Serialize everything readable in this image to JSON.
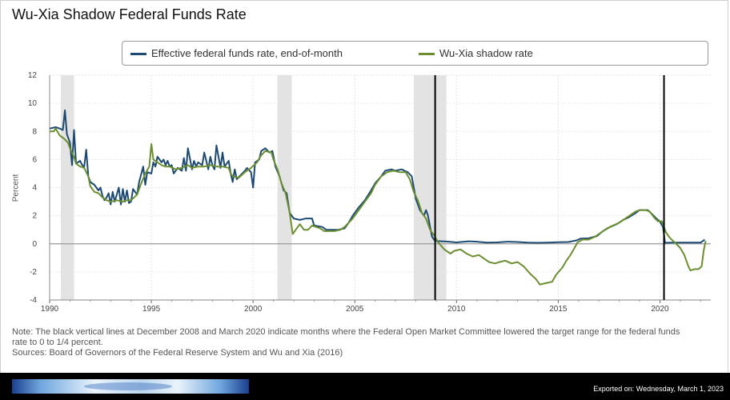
{
  "footer": {
    "export_label": "Exported on: Wednesday, March 1, 2023",
    "logo_icon": "fed-banner-logo"
  },
  "notes": {
    "note": "Note: The black vertical lines at December 2008 and March 2020 indicate months where the Federal Open Market Committee lowered the target range for the federal funds",
    "note_cont": "rate to 0 to 1/4 percent.",
    "sources": "Sources: Board of Governors of the Federal Reserve System and Wu and Xia (2016)"
  },
  "chart_data": {
    "type": "line",
    "title": "Wu-Xia Shadow Federal Funds Rate",
    "ylabel": "Percent",
    "xlim": [
      1990,
      2022.5
    ],
    "ylim": [
      -4,
      12
    ],
    "yticks": [
      -4,
      -2,
      0,
      2,
      4,
      6,
      8,
      10,
      12
    ],
    "xticks": [
      1990,
      1995,
      2000,
      2005,
      2010,
      2015,
      2020
    ],
    "grid": true,
    "legend": "top",
    "recessions": [
      [
        1990.55,
        1991.2
      ],
      [
        2001.2,
        2001.9
      ],
      [
        2007.9,
        2009.5
      ]
    ],
    "vlines": [
      2008.95,
      2020.2
    ],
    "series": [
      {
        "name": "Effective federal funds rate, end-of-month",
        "color": "#1d4a72",
        "points": [
          [
            1990.0,
            8.2
          ],
          [
            1990.3,
            8.3
          ],
          [
            1990.5,
            8.2
          ],
          [
            1990.65,
            8.1
          ],
          [
            1990.75,
            9.5
          ],
          [
            1990.85,
            7.8
          ],
          [
            1991.0,
            7.2
          ],
          [
            1991.1,
            5.6
          ],
          [
            1991.2,
            8.1
          ],
          [
            1991.3,
            5.7
          ],
          [
            1991.5,
            5.9
          ],
          [
            1991.6,
            5.6
          ],
          [
            1991.7,
            5.5
          ],
          [
            1991.8,
            6.7
          ],
          [
            1991.9,
            4.8
          ],
          [
            1992.0,
            4.4
          ],
          [
            1992.2,
            4.2
          ],
          [
            1992.4,
            3.8
          ],
          [
            1992.5,
            4.0
          ],
          [
            1992.6,
            3.4
          ],
          [
            1992.7,
            3.1
          ],
          [
            1992.8,
            3.3
          ],
          [
            1992.9,
            3.6
          ],
          [
            1993.0,
            2.8
          ],
          [
            1993.1,
            3.7
          ],
          [
            1993.2,
            3.0
          ],
          [
            1993.4,
            4.0
          ],
          [
            1993.5,
            2.8
          ],
          [
            1993.6,
            3.9
          ],
          [
            1993.7,
            3.0
          ],
          [
            1993.8,
            3.8
          ],
          [
            1993.9,
            2.9
          ],
          [
            1994.0,
            3.0
          ],
          [
            1994.1,
            3.9
          ],
          [
            1994.3,
            3.5
          ],
          [
            1994.4,
            4.4
          ],
          [
            1994.6,
            5.5
          ],
          [
            1994.7,
            4.2
          ],
          [
            1994.8,
            5.1
          ],
          [
            1995.0,
            5.0
          ],
          [
            1995.1,
            5.8
          ],
          [
            1995.2,
            5.5
          ],
          [
            1995.3,
            6.2
          ],
          [
            1995.5,
            5.8
          ],
          [
            1995.6,
            6.0
          ],
          [
            1995.7,
            5.6
          ],
          [
            1995.8,
            5.9
          ],
          [
            1995.9,
            5.5
          ],
          [
            1996.0,
            5.6
          ],
          [
            1996.1,
            5.0
          ],
          [
            1996.3,
            5.4
          ],
          [
            1996.5,
            5.2
          ],
          [
            1996.6,
            6.1
          ],
          [
            1996.7,
            5.2
          ],
          [
            1996.8,
            6.8
          ],
          [
            1997.0,
            5.3
          ],
          [
            1997.1,
            5.9
          ],
          [
            1997.2,
            5.5
          ],
          [
            1997.3,
            5.8
          ],
          [
            1997.5,
            5.6
          ],
          [
            1997.6,
            6.5
          ],
          [
            1997.8,
            5.3
          ],
          [
            1997.9,
            6.2
          ],
          [
            1998.0,
            5.6
          ],
          [
            1998.1,
            5.3
          ],
          [
            1998.2,
            7.0
          ],
          [
            1998.4,
            5.4
          ],
          [
            1998.5,
            6.5
          ],
          [
            1998.6,
            5.5
          ],
          [
            1998.8,
            5.9
          ],
          [
            1998.9,
            5.0
          ],
          [
            1999.0,
            4.4
          ],
          [
            1999.1,
            5.3
          ],
          [
            1999.2,
            4.6
          ],
          [
            1999.4,
            4.9
          ],
          [
            1999.6,
            5.2
          ],
          [
            1999.7,
            5.4
          ],
          [
            1999.9,
            5.1
          ],
          [
            2000.0,
            4.0
          ],
          [
            2000.1,
            5.8
          ],
          [
            2000.3,
            6.0
          ],
          [
            2000.4,
            6.6
          ],
          [
            2000.6,
            6.8
          ],
          [
            2000.8,
            6.5
          ],
          [
            2000.95,
            6.6
          ],
          [
            2001.1,
            5.5
          ],
          [
            2001.3,
            4.8
          ],
          [
            2001.5,
            3.8
          ],
          [
            2001.65,
            3.6
          ],
          [
            2001.8,
            2.2
          ],
          [
            2002.0,
            1.8
          ],
          [
            2002.3,
            1.7
          ],
          [
            2002.6,
            1.8
          ],
          [
            2002.9,
            1.8
          ],
          [
            2003.0,
            1.3
          ],
          [
            2003.4,
            1.2
          ],
          [
            2003.6,
            1.0
          ],
          [
            2003.9,
            1.0
          ],
          [
            2004.2,
            1.0
          ],
          [
            2004.5,
            1.1
          ],
          [
            2004.7,
            1.5
          ],
          [
            2004.9,
            2.0
          ],
          [
            2005.2,
            2.6
          ],
          [
            2005.5,
            3.1
          ],
          [
            2005.8,
            3.8
          ],
          [
            2006.0,
            4.3
          ],
          [
            2006.3,
            4.8
          ],
          [
            2006.5,
            5.2
          ],
          [
            2006.8,
            5.3
          ],
          [
            2007.0,
            5.2
          ],
          [
            2007.3,
            5.3
          ],
          [
            2007.6,
            5.1
          ],
          [
            2007.8,
            4.8
          ],
          [
            2008.0,
            3.2
          ],
          [
            2008.2,
            2.4
          ],
          [
            2008.4,
            2.0
          ],
          [
            2008.5,
            2.4
          ],
          [
            2008.6,
            2.0
          ],
          [
            2008.7,
            1.2
          ],
          [
            2008.8,
            0.5
          ],
          [
            2008.95,
            0.2
          ],
          [
            2009.5,
            0.16
          ],
          [
            2010.0,
            0.1
          ],
          [
            2010.6,
            0.18
          ],
          [
            2011.0,
            0.15
          ],
          [
            2011.5,
            0.09
          ],
          [
            2012.0,
            0.1
          ],
          [
            2012.5,
            0.15
          ],
          [
            2013.0,
            0.13
          ],
          [
            2013.5,
            0.09
          ],
          [
            2014.0,
            0.07
          ],
          [
            2014.5,
            0.09
          ],
          [
            2015.0,
            0.11
          ],
          [
            2015.5,
            0.13
          ],
          [
            2015.9,
            0.24
          ],
          [
            2016.1,
            0.37
          ],
          [
            2016.5,
            0.39
          ],
          [
            2016.9,
            0.55
          ],
          [
            2017.2,
            0.9
          ],
          [
            2017.5,
            1.16
          ],
          [
            2017.9,
            1.42
          ],
          [
            2018.2,
            1.7
          ],
          [
            2018.5,
            1.91
          ],
          [
            2018.8,
            2.19
          ],
          [
            2019.0,
            2.4
          ],
          [
            2019.4,
            2.4
          ],
          [
            2019.6,
            2.13
          ],
          [
            2019.8,
            1.83
          ],
          [
            2020.0,
            1.58
          ],
          [
            2020.15,
            1.2
          ],
          [
            2020.25,
            0.07
          ],
          [
            2020.6,
            0.09
          ],
          [
            2021.0,
            0.08
          ],
          [
            2021.5,
            0.08
          ],
          [
            2022.0,
            0.08
          ],
          [
            2022.2,
            0.3
          ]
        ]
      },
      {
        "name": "Wu-Xia shadow rate",
        "color": "#6b8e2f",
        "points": [
          [
            1990.0,
            8.0
          ],
          [
            1990.2,
            8.0
          ],
          [
            1990.3,
            8.2
          ],
          [
            1990.5,
            7.7
          ],
          [
            1990.7,
            7.5
          ],
          [
            1990.9,
            7.2
          ],
          [
            1991.0,
            6.8
          ],
          [
            1991.2,
            6.2
          ],
          [
            1991.3,
            5.7
          ],
          [
            1991.5,
            5.5
          ],
          [
            1991.7,
            5.4
          ],
          [
            1991.9,
            4.8
          ],
          [
            1992.0,
            4.1
          ],
          [
            1992.2,
            3.7
          ],
          [
            1992.4,
            3.6
          ],
          [
            1992.6,
            3.3
          ],
          [
            1992.8,
            3.1
          ],
          [
            1993.0,
            3.0
          ],
          [
            1993.3,
            3.1
          ],
          [
            1993.6,
            3.0
          ],
          [
            1993.8,
            3.1
          ],
          [
            1994.0,
            3.1
          ],
          [
            1994.3,
            3.5
          ],
          [
            1994.5,
            4.3
          ],
          [
            1994.7,
            5.0
          ],
          [
            1994.9,
            5.5
          ],
          [
            1995.0,
            7.1
          ],
          [
            1995.1,
            6.0
          ],
          [
            1995.3,
            5.8
          ],
          [
            1995.5,
            5.6
          ],
          [
            1995.7,
            5.5
          ],
          [
            1995.9,
            5.5
          ],
          [
            1996.2,
            5.3
          ],
          [
            1996.5,
            5.4
          ],
          [
            1996.8,
            5.6
          ],
          [
            1997.0,
            5.4
          ],
          [
            1997.3,
            5.5
          ],
          [
            1997.6,
            5.5
          ],
          [
            1997.9,
            5.6
          ],
          [
            1998.2,
            5.5
          ],
          [
            1998.5,
            5.5
          ],
          [
            1998.8,
            5.4
          ],
          [
            1998.9,
            5.0
          ],
          [
            1999.0,
            4.8
          ],
          [
            1999.3,
            4.7
          ],
          [
            1999.6,
            5.1
          ],
          [
            1999.9,
            5.4
          ],
          [
            2000.2,
            5.8
          ],
          [
            2000.4,
            6.3
          ],
          [
            2000.6,
            6.6
          ],
          [
            2000.9,
            6.5
          ],
          [
            2001.0,
            6.0
          ],
          [
            2001.2,
            5.3
          ],
          [
            2001.4,
            4.3
          ],
          [
            2001.6,
            3.6
          ],
          [
            2001.8,
            2.2
          ],
          [
            2001.95,
            0.7
          ],
          [
            2002.1,
            1.0
          ],
          [
            2002.3,
            1.4
          ],
          [
            2002.5,
            1.0
          ],
          [
            2002.7,
            1.0
          ],
          [
            2002.9,
            1.3
          ],
          [
            2003.1,
            1.2
          ],
          [
            2003.3,
            1.1
          ],
          [
            2003.5,
            0.9
          ],
          [
            2003.8,
            0.9
          ],
          [
            2004.0,
            0.9
          ],
          [
            2004.3,
            1.0
          ],
          [
            2004.5,
            1.2
          ],
          [
            2004.7,
            1.5
          ],
          [
            2004.9,
            1.8
          ],
          [
            2005.2,
            2.4
          ],
          [
            2005.5,
            3.0
          ],
          [
            2005.8,
            3.6
          ],
          [
            2006.0,
            4.2
          ],
          [
            2006.3,
            4.8
          ],
          [
            2006.6,
            5.1
          ],
          [
            2006.9,
            5.2
          ],
          [
            2007.2,
            5.1
          ],
          [
            2007.5,
            5.1
          ],
          [
            2007.7,
            4.6
          ],
          [
            2007.9,
            3.7
          ],
          [
            2008.1,
            3.1
          ],
          [
            2008.3,
            2.2
          ],
          [
            2008.5,
            1.8
          ],
          [
            2008.7,
            1.0
          ],
          [
            2008.9,
            0.6
          ],
          [
            2009.1,
            0.1
          ],
          [
            2009.4,
            -0.4
          ],
          [
            2009.7,
            -0.7
          ],
          [
            2009.9,
            -0.5
          ],
          [
            2010.2,
            -0.4
          ],
          [
            2010.5,
            -0.7
          ],
          [
            2010.8,
            -0.9
          ],
          [
            2011.1,
            -0.8
          ],
          [
            2011.4,
            -1.1
          ],
          [
            2011.6,
            -1.3
          ],
          [
            2011.9,
            -1.4
          ],
          [
            2012.1,
            -1.3
          ],
          [
            2012.4,
            -1.2
          ],
          [
            2012.7,
            -1.4
          ],
          [
            2013.0,
            -1.3
          ],
          [
            2013.3,
            -1.6
          ],
          [
            2013.6,
            -2.1
          ],
          [
            2013.9,
            -2.5
          ],
          [
            2014.1,
            -2.9
          ],
          [
            2014.4,
            -2.8
          ],
          [
            2014.7,
            -2.7
          ],
          [
            2014.9,
            -2.2
          ],
          [
            2015.2,
            -1.7
          ],
          [
            2015.4,
            -1.2
          ],
          [
            2015.6,
            -0.8
          ],
          [
            2015.8,
            -0.3
          ],
          [
            2015.95,
            0.1
          ],
          [
            2016.2,
            0.3
          ],
          [
            2016.5,
            0.3
          ],
          [
            2016.8,
            0.5
          ],
          [
            2017.1,
            0.8
          ],
          [
            2017.4,
            1.1
          ],
          [
            2017.7,
            1.3
          ],
          [
            2018.0,
            1.5
          ],
          [
            2018.3,
            1.8
          ],
          [
            2018.6,
            2.1
          ],
          [
            2018.8,
            2.3
          ],
          [
            2019.0,
            2.4
          ],
          [
            2019.3,
            2.4
          ],
          [
            2019.5,
            2.3
          ],
          [
            2019.7,
            1.9
          ],
          [
            2019.9,
            1.6
          ],
          [
            2020.1,
            1.6
          ],
          [
            2020.2,
            1.2
          ],
          [
            2020.3,
            0.8
          ],
          [
            2020.5,
            0.4
          ],
          [
            2020.8,
            0.0
          ],
          [
            2021.0,
            -0.3
          ],
          [
            2021.2,
            -0.8
          ],
          [
            2021.4,
            -1.6
          ],
          [
            2021.5,
            -1.9
          ],
          [
            2021.7,
            -1.8
          ],
          [
            2021.9,
            -1.8
          ],
          [
            2022.05,
            -1.6
          ],
          [
            2022.15,
            -0.5
          ],
          [
            2022.25,
            0.2
          ]
        ]
      }
    ]
  }
}
